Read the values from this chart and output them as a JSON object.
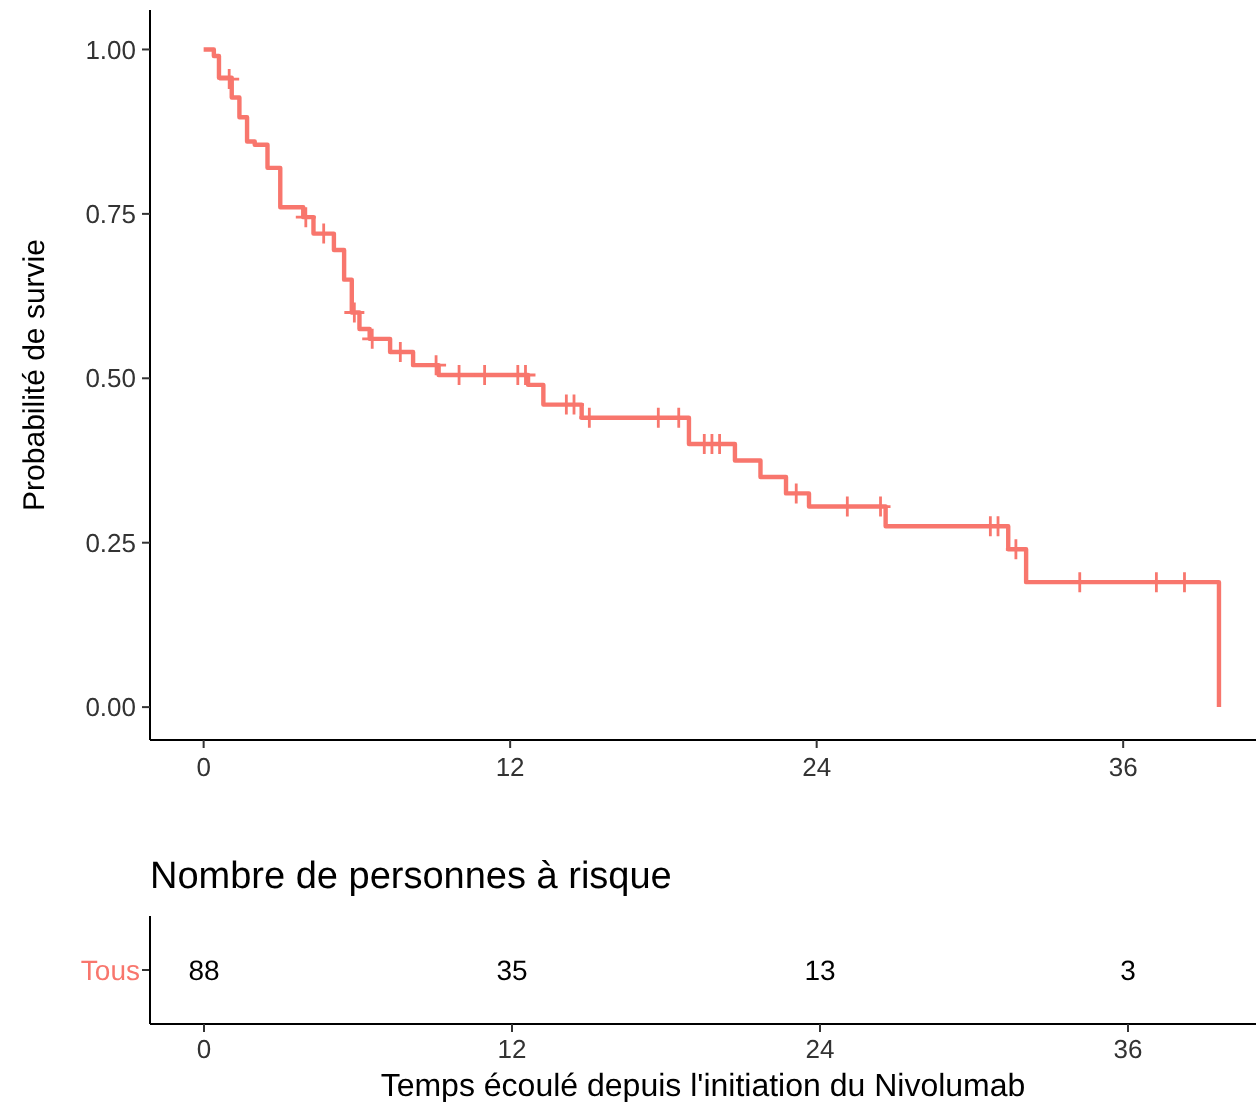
{
  "chart_data": [
    {
      "type": "step",
      "ylabel": "Probabilité de survie",
      "xlim": [
        -2.1,
        41.2
      ],
      "ylim": [
        -0.05,
        1.06
      ],
      "xticks": [
        0,
        12,
        24,
        36
      ],
      "yticks": [
        {
          "value": 0,
          "label": "0.00"
        },
        {
          "value": 0.25,
          "label": "0.25"
        },
        {
          "value": 0.5,
          "label": "0.50"
        },
        {
          "value": 0.75,
          "label": "0.75"
        },
        {
          "value": 1,
          "label": "1.00"
        }
      ],
      "grid": false,
      "series": [
        {
          "type": "step",
          "color": "#f8766d",
          "x": [
            0,
            0.4,
            0.6,
            1.1,
            1.4,
            1.7,
            2.0,
            2.5,
            3.0,
            3.9,
            4.3,
            5.1,
            5.5,
            5.8,
            6.1,
            6.5,
            7.3,
            8.2,
            9.2,
            12.7,
            13.3,
            14.8,
            19.0,
            20.8,
            21.8,
            22.8,
            23.7,
            26.7,
            31.5,
            32.2,
            39.75
          ],
          "values": [
            1,
            0.99,
            0.957,
            0.927,
            0.897,
            0.86,
            0.855,
            0.82,
            0.76,
            0.745,
            0.72,
            0.695,
            0.65,
            0.6,
            0.575,
            0.56,
            0.54,
            0.52,
            0.505,
            0.49,
            0.46,
            0.44,
            0.4,
            0.375,
            0.35,
            0.325,
            0.305,
            0.275,
            0.24,
            0.19,
            0
          ]
        },
        {
          "type": "scatter",
          "marker": "cross",
          "color": "#f8766d",
          "x": [
            1.0,
            4.0,
            4.7,
            5.9,
            6.6,
            7.7,
            9.1,
            10.0,
            11.0,
            12.3,
            12.6,
            14.2,
            14.5,
            15.1,
            17.8,
            18.6,
            19.6,
            19.9,
            20.2,
            23.2,
            25.2,
            26.5,
            30.8,
            31.1,
            31.8,
            34.3,
            37.3,
            38.4
          ],
          "values": [
            0.955,
            0.745,
            0.72,
            0.6,
            0.56,
            0.54,
            0.52,
            0.505,
            0.505,
            0.505,
            0.505,
            0.46,
            0.46,
            0.44,
            0.44,
            0.44,
            0.4,
            0.4,
            0.4,
            0.325,
            0.305,
            0.305,
            0.275,
            0.275,
            0.24,
            0.19,
            0.19,
            0.19
          ]
        }
      ]
    },
    {
      "type": "heatmap",
      "title": "Nombre de personnes à risque",
      "xlabel": "Temps écoulé depuis l'initiation du Nivolumab",
      "categories": [
        "0",
        "12",
        "24",
        "36"
      ],
      "y_categories": [
        "Tous"
      ],
      "color": "#f8766d",
      "cells": [
        [
          88,
          35,
          13,
          3
        ]
      ],
      "data_labels": true
    }
  ]
}
